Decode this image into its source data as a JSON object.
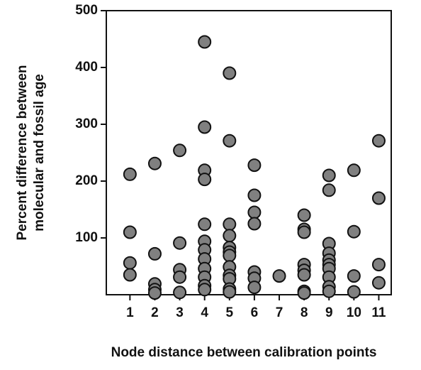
{
  "chart_data": {
    "type": "scatter",
    "xlabel": "Node distance between calibration points",
    "ylabel": [
      "Percent difference between",
      "molecular and fossil age"
    ],
    "x": [
      1,
      1,
      1,
      1,
      2,
      2,
      2,
      2,
      2,
      3,
      3,
      3,
      3,
      3,
      4,
      4,
      4,
      4,
      4,
      4,
      4,
      4,
      4,
      4,
      4,
      4,
      5,
      5,
      5,
      5,
      5,
      5,
      5,
      5,
      5,
      5,
      5,
      5,
      6,
      6,
      6,
      6,
      6,
      6,
      6,
      7,
      8,
      8,
      8,
      8,
      8,
      8,
      8,
      8,
      9,
      9,
      9,
      9,
      9,
      9,
      9,
      9,
      9,
      9,
      10,
      10,
      10,
      10,
      11,
      11,
      11,
      11
    ],
    "y": [
      212,
      110,
      56,
      35,
      231,
      72,
      19,
      9,
      3,
      254,
      91,
      44,
      31,
      4,
      445,
      295,
      219,
      203,
      124,
      94,
      79,
      63,
      46,
      31,
      16,
      9,
      390,
      271,
      124,
      104,
      83,
      75,
      69,
      49,
      34,
      28,
      10,
      5,
      228,
      175,
      145,
      125,
      40,
      29,
      13,
      33,
      140,
      115,
      110,
      53,
      43,
      35,
      6,
      3,
      210,
      184,
      90,
      73,
      61,
      53,
      46,
      31,
      14,
      6,
      219,
      111,
      33,
      5,
      271,
      170,
      53,
      21
    ],
    "color": "#808080",
    "xlim": [
      0.05,
      11.5
    ],
    "xticks": [
      1,
      2,
      3,
      4,
      5,
      6,
      7,
      8,
      9,
      10,
      11
    ],
    "ylim": [
      0,
      500
    ],
    "yticks": [
      100,
      200,
      300,
      400,
      500
    ]
  }
}
